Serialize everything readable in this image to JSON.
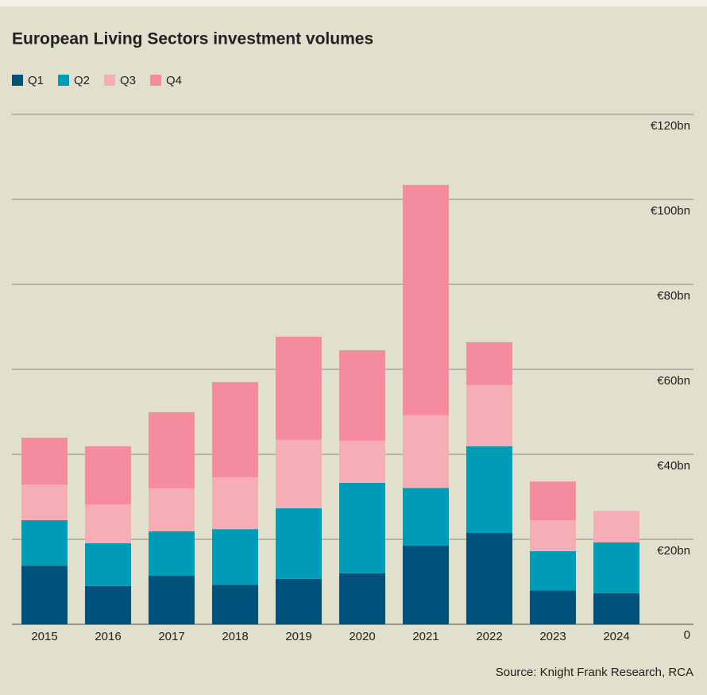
{
  "chart_data": {
    "type": "stacked_bar",
    "title": "European Living Sectors investment volumes",
    "categories": [
      "2015",
      "2016",
      "2017",
      "2018",
      "2019",
      "2020",
      "2021",
      "2022",
      "2023",
      "2024"
    ],
    "series": [
      {
        "name": "Q1",
        "color": "#00527a",
        "values": [
          13.8,
          9.0,
          11.4,
          9.3,
          10.7,
          12.0,
          18.5,
          21.5,
          8.0,
          7.3
        ]
      },
      {
        "name": "Q2",
        "color": "#009bb5",
        "values": [
          10.7,
          10.1,
          10.5,
          13.1,
          16.6,
          21.3,
          13.6,
          20.4,
          9.2,
          12.0
        ]
      },
      {
        "name": "Q3",
        "color": "#f7adb5",
        "values": [
          8.4,
          9.1,
          10.1,
          12.2,
          16.1,
          9.9,
          17.1,
          14.4,
          7.3,
          7.4
        ]
      },
      {
        "name": "Q4",
        "color": "#f48b9e",
        "values": [
          11.0,
          13.7,
          17.9,
          22.4,
          24.3,
          21.3,
          54.2,
          10.1,
          9.1,
          null
        ]
      }
    ],
    "ylim": [
      0,
      120
    ],
    "yticks": [
      0,
      {
        "value": 20,
        "label": "€20bn"
      },
      {
        "value": 40,
        "label": "€40bn"
      },
      {
        "value": 60,
        "label": "€60bn"
      },
      {
        "value": 80,
        "label": "€80bn"
      },
      {
        "value": 100,
        "label": "€100bn"
      },
      {
        "value": 120,
        "label": "€120bn"
      }
    ],
    "grid": true,
    "source": "Source: Knight Frank Research, RCA"
  }
}
